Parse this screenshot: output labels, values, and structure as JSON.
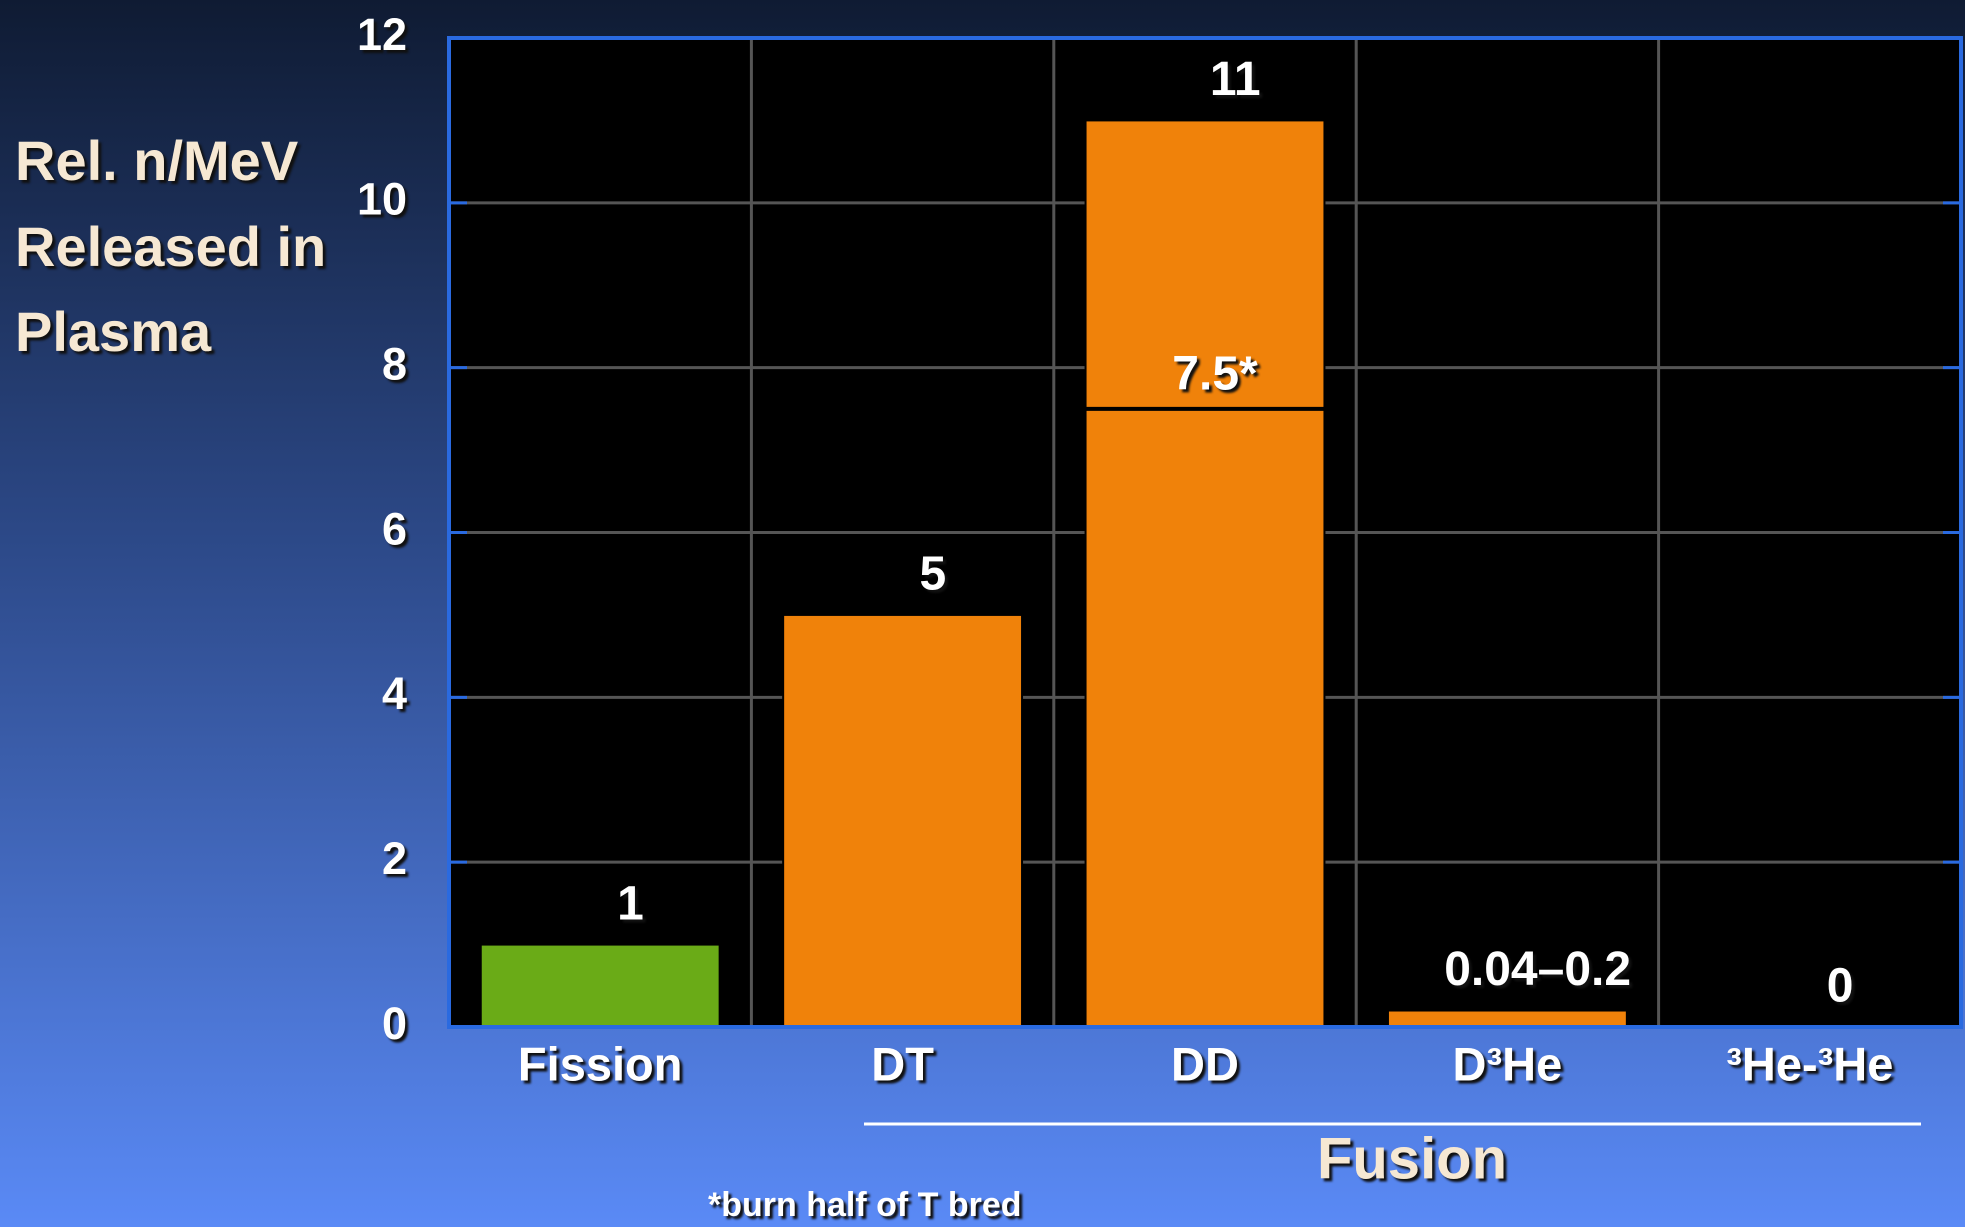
{
  "chart_data": {
    "type": "bar",
    "ylabel": [
      "Rel. n/MeV",
      "Released in",
      "Plasma"
    ],
    "categories": [
      "Fission",
      "DT",
      "DD",
      "D³He",
      "³He-³He"
    ],
    "values": [
      1,
      5,
      11,
      0.2,
      0
    ],
    "value_labels": [
      "1",
      "5",
      "11",
      "0.04–0.2",
      "0"
    ],
    "colors": [
      "#6aab17",
      "#f0820a",
      "#f0820a",
      "#f0820a",
      "#f0820a"
    ],
    "markers": [
      {
        "category": "DD",
        "value": 7.5,
        "label": "7.5*"
      }
    ],
    "group_label": "Fusion",
    "footnote": "*burn half of T bred",
    "ylim": [
      0,
      12
    ],
    "yticks": [
      0,
      2,
      4,
      6,
      8,
      10,
      12
    ],
    "grid": true
  }
}
